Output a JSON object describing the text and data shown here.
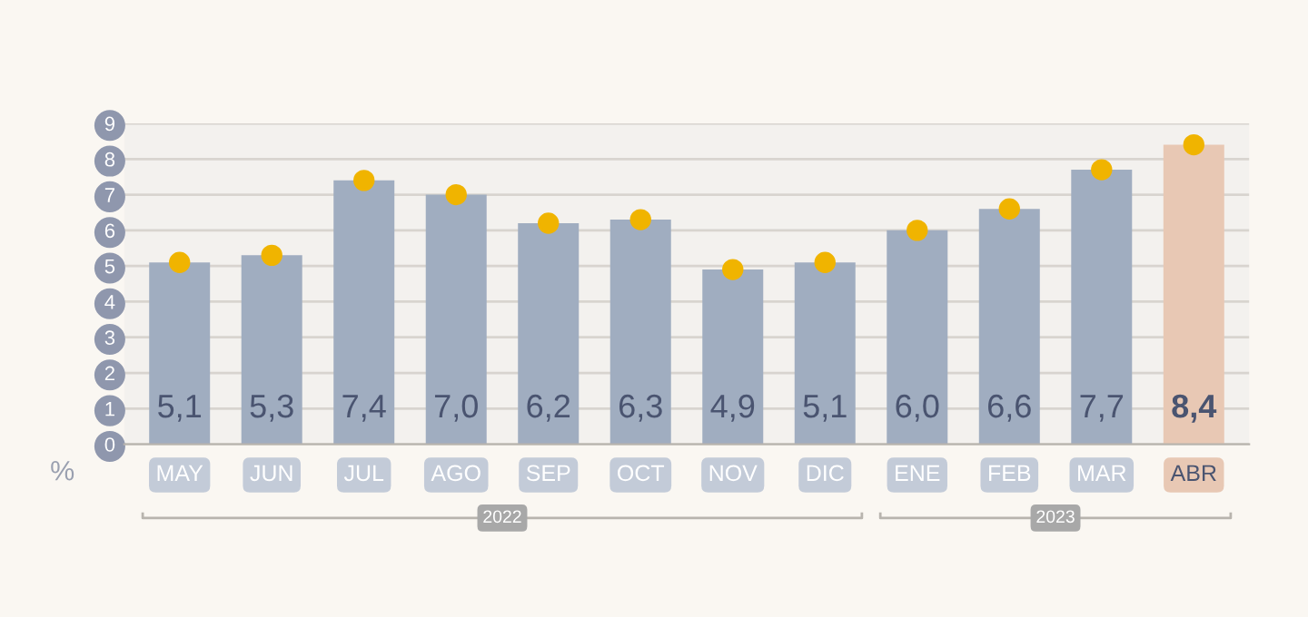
{
  "chart_data": {
    "type": "bar",
    "ylabel": "%",
    "categories": [
      "MAY",
      "JUN",
      "JUL",
      "AGO",
      "SEP",
      "OCT",
      "NOV",
      "DIC",
      "ENE",
      "FEB",
      "MAR",
      "ABR"
    ],
    "series": [
      {
        "colors": [
          "#a0adc0",
          "#a0adc0",
          "#a0adc0",
          "#a0adc0",
          "#a0adc0",
          "#a0adc0",
          "#a0adc0",
          "#a0adc0",
          "#a0adc0",
          "#a0adc0",
          "#a0adc0",
          "#e8c8b4"
        ],
        "values": [
          5.1,
          5.3,
          7.4,
          7.0,
          6.2,
          6.3,
          4.9,
          5.1,
          6.0,
          6.6,
          7.7,
          8.4
        ],
        "value_labels": [
          "5,1",
          "5,3",
          "7,4",
          "7,0",
          "6,2",
          "6,3",
          "4,9",
          "5,1",
          "6,0",
          "6,6",
          "7,7",
          "8,4"
        ]
      },
      {
        "type": "scatter",
        "color": "#f0b400",
        "x": [
          "MAY",
          "JUN",
          "JUL",
          "AGO",
          "SEP",
          "OCT",
          "NOV",
          "DIC",
          "ENE",
          "FEB",
          "MAR",
          "ABR"
        ],
        "values": [
          5.1,
          5.3,
          7.4,
          7.0,
          6.2,
          6.3,
          4.9,
          5.1,
          6.0,
          6.6,
          7.7,
          8.4
        ]
      }
    ],
    "ylim": [
      0,
      9
    ],
    "yticks": [
      0,
      1,
      2,
      3,
      4,
      5,
      6,
      7,
      8,
      9
    ],
    "grid": "y",
    "marker": "circle",
    "annotations": [
      "2022",
      "2023"
    ]
  }
}
